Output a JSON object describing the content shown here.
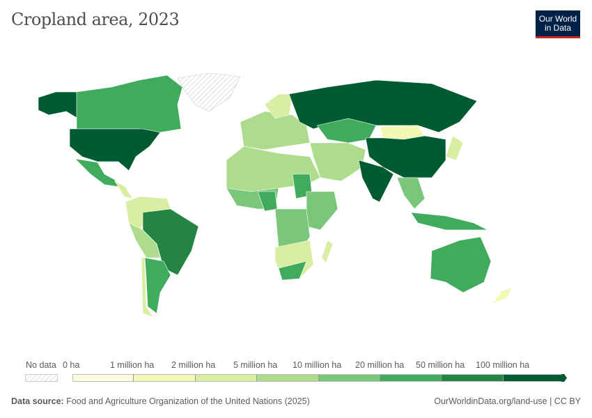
{
  "title": "Cropland area, 2023",
  "logo": {
    "line1": "Our World",
    "line2": "in Data"
  },
  "legend": {
    "no_data_label": "No data",
    "bins": [
      {
        "label": "0 ha",
        "color": "#fefee2"
      },
      {
        "label": "1 million ha",
        "color": "#f3f8b4"
      },
      {
        "label": "2 million ha",
        "color": "#d9eea2"
      },
      {
        "label": "5 million ha",
        "color": "#acdc8c"
      },
      {
        "label": "10 million ha",
        "color": "#7ac67b"
      },
      {
        "label": "20 million ha",
        "color": "#41ab5d"
      },
      {
        "label": "50 million ha",
        "color": "#238443"
      },
      {
        "label": "100 million ha",
        "color": "#005a32"
      }
    ]
  },
  "footer": {
    "source_label": "Data source:",
    "source_text": "Food and Agriculture Organization of the United Nations (2025)",
    "link": "OurWorldinData.org/land-use | CC BY"
  }
}
